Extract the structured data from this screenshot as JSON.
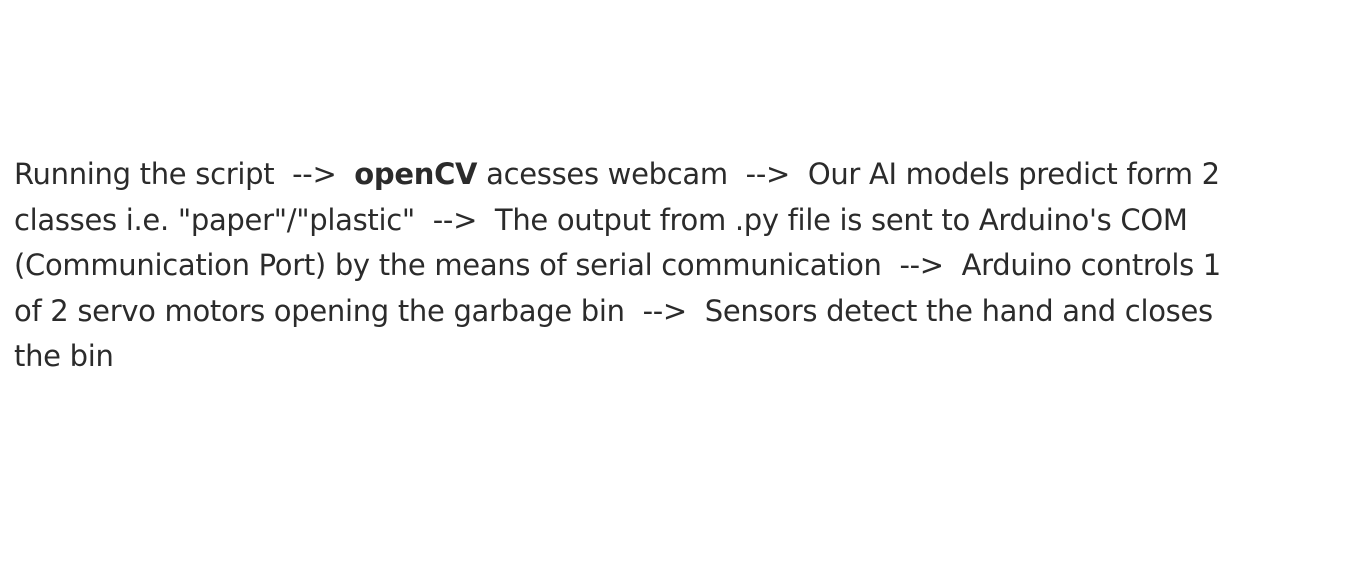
{
  "text_block": {
    "line_1": {
      "before": "Running the script  -->  ",
      "emphasis": "openCV",
      "after": " acesses webcam  -->  Our AI models predict form 2"
    },
    "line_2": "classes i.e. \"paper\"/\"plastic\"  -->  The output from .py file is sent to Arduino's COM",
    "line_3": "(Communication Port) by the means of serial communication  -->  Arduino controls 1",
    "line_4": "of 2 servo motors opening the garbage bin  -->  Sensors detect the hand and closes",
    "line_5": "the bin"
  }
}
